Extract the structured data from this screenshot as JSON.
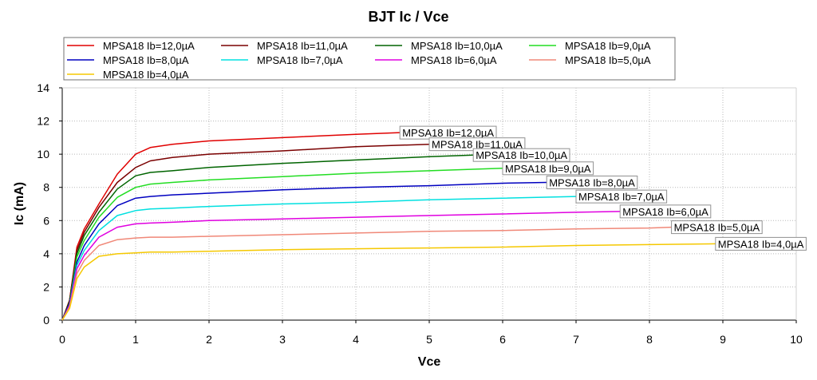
{
  "chart_data": {
    "type": "line",
    "title": "BJT Ic / Vce",
    "xlabel": "Vce",
    "ylabel": "Ic (mA)",
    "xlim": [
      0,
      10
    ],
    "ylim": [
      0,
      14
    ],
    "xticks": [
      "0",
      "1",
      "2",
      "3",
      "4",
      "5",
      "6",
      "7",
      "8",
      "9",
      "10"
    ],
    "yticks": [
      "0",
      "2",
      "4",
      "6",
      "8",
      "10",
      "12",
      "14"
    ],
    "grid": true,
    "legend_position": "top",
    "series": [
      {
        "name": "MPSA18 Ib=12,0µA",
        "color": "#e00000",
        "x": [
          0,
          0.1,
          0.2,
          0.3,
          0.5,
          0.75,
          1.0,
          1.2,
          1.5,
          2.0,
          3.0,
          4.0,
          4.6
        ],
        "y": [
          0,
          1.2,
          4.4,
          5.5,
          7.0,
          8.8,
          10.0,
          10.4,
          10.6,
          10.8,
          11.0,
          11.2,
          11.3
        ]
      },
      {
        "name": "MPSA18 Ib=11,0µA",
        "color": "#7a0000",
        "x": [
          0,
          0.1,
          0.2,
          0.3,
          0.5,
          0.75,
          1.0,
          1.2,
          1.5,
          2.0,
          3.0,
          4.0,
          5.0
        ],
        "y": [
          0,
          1.2,
          4.2,
          5.3,
          6.8,
          8.3,
          9.2,
          9.6,
          9.8,
          10.0,
          10.2,
          10.45,
          10.6
        ]
      },
      {
        "name": "MPSA18 Ib=10,0µA",
        "color": "#006400",
        "x": [
          0,
          0.1,
          0.2,
          0.3,
          0.5,
          0.75,
          1.0,
          1.2,
          1.5,
          2.0,
          3.0,
          4.0,
          5.0,
          5.6
        ],
        "y": [
          0,
          1.1,
          4.0,
          5.1,
          6.5,
          7.9,
          8.7,
          8.9,
          9.0,
          9.2,
          9.45,
          9.65,
          9.85,
          9.95
        ]
      },
      {
        "name": "MPSA18 Ib=9,0µA",
        "color": "#22dd22",
        "x": [
          0,
          0.1,
          0.2,
          0.3,
          0.5,
          0.75,
          1.0,
          1.2,
          1.5,
          2.0,
          3.0,
          4.0,
          5.0,
          6.0
        ],
        "y": [
          0,
          1.0,
          3.8,
          4.8,
          6.2,
          7.4,
          8.0,
          8.2,
          8.3,
          8.45,
          8.65,
          8.85,
          9.0,
          9.15
        ]
      },
      {
        "name": "MPSA18 Ib=8,0µA",
        "color": "#0000c0",
        "x": [
          0,
          0.1,
          0.2,
          0.3,
          0.5,
          0.75,
          1.0,
          1.2,
          1.5,
          2.0,
          3.0,
          4.0,
          5.0,
          6.0,
          6.6
        ],
        "y": [
          0,
          1.0,
          3.5,
          4.5,
          5.8,
          6.9,
          7.35,
          7.45,
          7.55,
          7.65,
          7.85,
          8.0,
          8.1,
          8.25,
          8.3
        ]
      },
      {
        "name": "MPSA18 Ib=7,0µA",
        "color": "#00e0e0",
        "x": [
          0,
          0.1,
          0.2,
          0.3,
          0.5,
          0.75,
          1.0,
          1.2,
          1.5,
          2.0,
          3.0,
          4.0,
          5.0,
          6.0,
          7.0
        ],
        "y": [
          0,
          0.9,
          3.3,
          4.2,
          5.4,
          6.3,
          6.6,
          6.7,
          6.75,
          6.85,
          7.0,
          7.1,
          7.25,
          7.35,
          7.45
        ]
      },
      {
        "name": "MPSA18 Ib=6,0µA",
        "color": "#e000e0",
        "x": [
          0,
          0.1,
          0.2,
          0.3,
          0.5,
          0.75,
          1.0,
          1.2,
          1.5,
          2.0,
          3.0,
          4.0,
          5.0,
          6.0,
          7.0,
          7.6
        ],
        "y": [
          0,
          0.9,
          3.1,
          3.9,
          5.0,
          5.6,
          5.8,
          5.85,
          5.9,
          6.0,
          6.1,
          6.2,
          6.3,
          6.4,
          6.5,
          6.55
        ]
      },
      {
        "name": "MPSA18 Ib=5,0µA",
        "color": "#f08878",
        "x": [
          0,
          0.1,
          0.2,
          0.3,
          0.5,
          0.75,
          1.0,
          1.2,
          1.5,
          2.0,
          3.0,
          4.0,
          5.0,
          6.0,
          7.0,
          8.0,
          8.3
        ],
        "y": [
          0,
          0.8,
          2.8,
          3.6,
          4.5,
          4.85,
          4.95,
          5.0,
          5.0,
          5.05,
          5.15,
          5.25,
          5.35,
          5.4,
          5.5,
          5.55,
          5.6
        ]
      },
      {
        "name": "MPSA18 Ib=4,0µA",
        "color": "#f5c800",
        "x": [
          0,
          0.1,
          0.2,
          0.3,
          0.5,
          0.75,
          1.0,
          1.2,
          1.5,
          2.0,
          3.0,
          4.0,
          5.0,
          6.0,
          7.0,
          8.0,
          8.9
        ],
        "y": [
          0,
          0.7,
          2.5,
          3.2,
          3.85,
          4.0,
          4.05,
          4.1,
          4.1,
          4.15,
          4.25,
          4.3,
          4.35,
          4.4,
          4.5,
          4.55,
          4.6
        ]
      }
    ]
  }
}
